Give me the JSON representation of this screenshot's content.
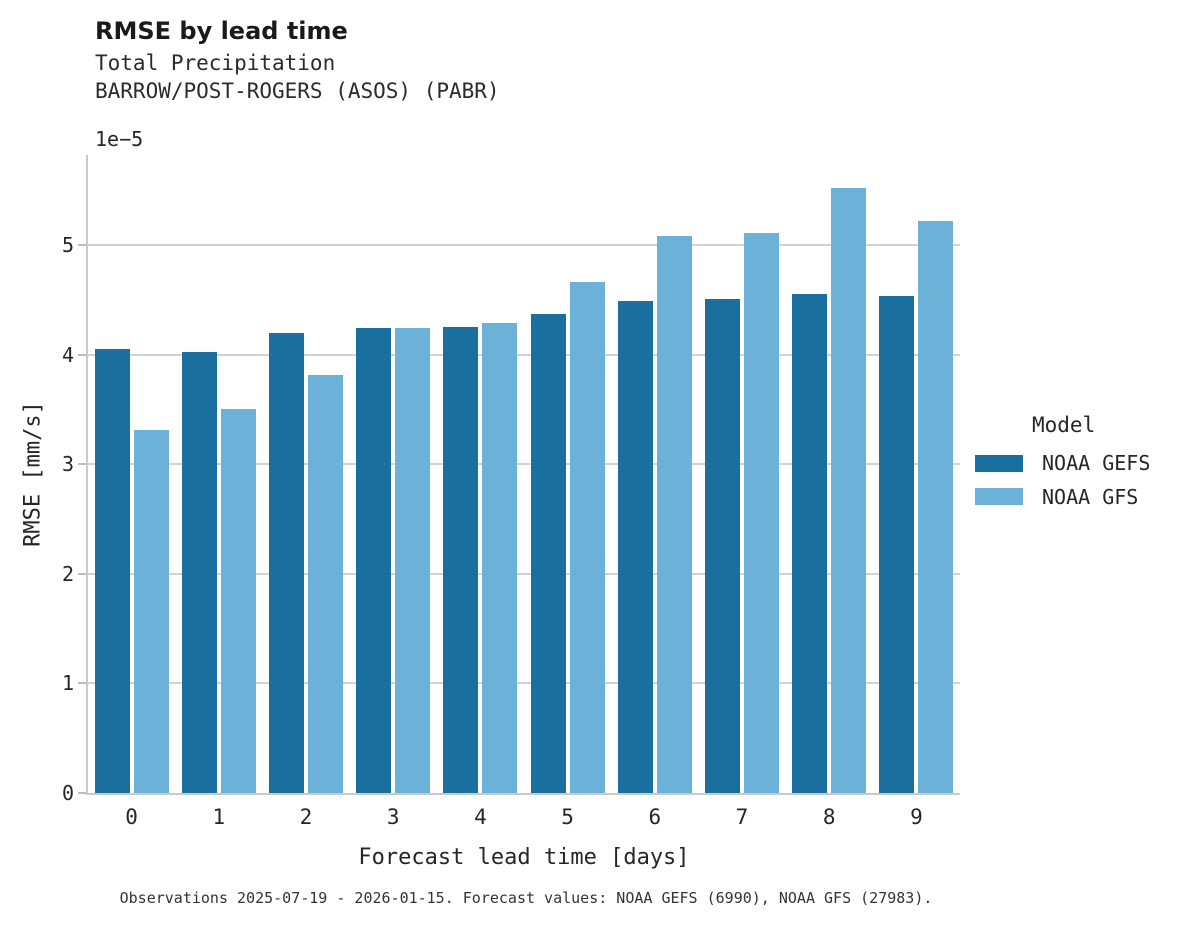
{
  "header": {
    "title": "RMSE by lead time",
    "subtitle_variable": "Total Precipitation",
    "subtitle_station": "BARROW/POST-ROGERS (ASOS) (PABR)"
  },
  "chart_data": {
    "type": "bar",
    "title": "RMSE by lead time",
    "subtitle": [
      "Total Precipitation",
      "BARROW/POST-ROGERS (ASOS) (PABR)"
    ],
    "categories": [
      "0",
      "1",
      "2",
      "3",
      "4",
      "5",
      "6",
      "7",
      "8",
      "9"
    ],
    "series": [
      {
        "name": "NOAA GEFS",
        "color": "#1a6f9e",
        "values": [
          4.05,
          4.02,
          4.2,
          4.24,
          4.25,
          4.37,
          4.49,
          4.51,
          4.55,
          4.53
        ]
      },
      {
        "name": "NOAA GFS",
        "color": "#6cb1d8",
        "values": [
          3.31,
          3.5,
          3.81,
          4.24,
          4.29,
          4.66,
          5.08,
          5.11,
          5.52,
          5.22
        ]
      }
    ],
    "value_unit": "1e-5 mm/s",
    "xlabel": "Forecast lead time [days]",
    "ylabel": "RMSE [mm/s]",
    "y_offset_label": "1e−5",
    "y_ticks": [
      "0",
      "1",
      "2",
      "3",
      "4",
      "5"
    ],
    "ylim": [
      0,
      5.82
    ],
    "grid": "horizontal-major",
    "legend_title": "Model",
    "legend_position": "right"
  },
  "legend": {
    "title": "Model",
    "items": [
      {
        "label": "NOAA GEFS",
        "color": "#1a6f9e"
      },
      {
        "label": "NOAA GFS",
        "color": "#6cb1d8"
      }
    ]
  },
  "footer": {
    "note": "Observations 2025-07-19 - 2026-01-15. Forecast values: NOAA GEFS (6990), NOAA GFS (27983)."
  },
  "colors": {
    "series_dark": "#1a6f9e",
    "series_light": "#6cb1d8",
    "gridline": "#d2d2d2",
    "spine": "#c9c9c9",
    "text": "#262626"
  }
}
